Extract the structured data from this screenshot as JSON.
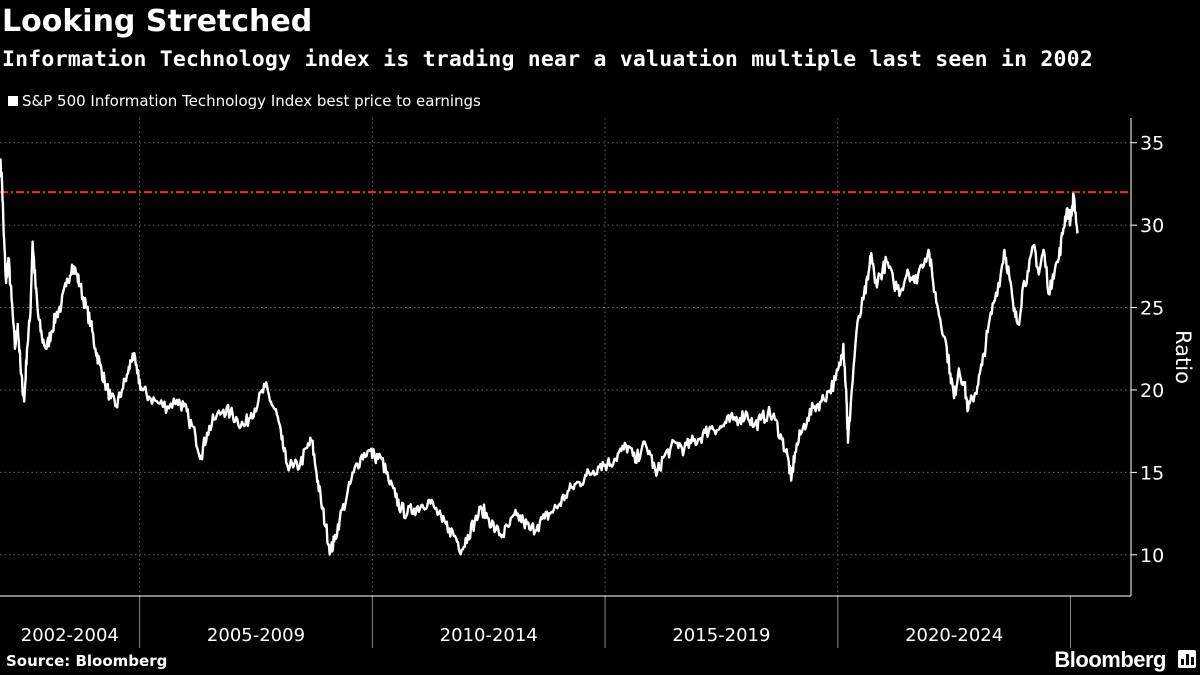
{
  "header": {
    "title": "Looking Stretched",
    "subtitle": "Information Technology index is trading near a valuation multiple last seen in 2002",
    "legend_label": "S&P 500 Information Technology Index best price to earnings"
  },
  "footer": {
    "source": "Source: Bloomberg",
    "brand": "Bloomberg"
  },
  "colors": {
    "background": "#000000",
    "line": "#ffffff",
    "reference": "#e8283c",
    "grid": "#666666"
  },
  "chart_data": {
    "type": "line",
    "title": "Looking Stretched",
    "subtitle": "Information Technology index is trading near a valuation multiple last seen in 2002",
    "ylabel": "Ratio",
    "ylim": [
      7.5,
      36.5
    ],
    "yticks": [
      10,
      15,
      20,
      25,
      30,
      35
    ],
    "xlim": [
      2002.0,
      2026.3
    ],
    "x_groups": [
      {
        "label": "2002-2004",
        "start": 2002.0,
        "end": 2005.0
      },
      {
        "label": "2005-2009",
        "start": 2005.0,
        "end": 2010.0
      },
      {
        "label": "2010-2014",
        "start": 2010.0,
        "end": 2015.0
      },
      {
        "label": "2015-2019",
        "start": 2015.0,
        "end": 2020.0
      },
      {
        "label": "2020-2024",
        "start": 2020.0,
        "end": 2025.0
      }
    ],
    "grid": true,
    "reference_line": {
      "value": 32.0,
      "style": "dash-dot"
    },
    "series": [
      {
        "name": "S&P 500 Information Technology Index best price to earnings",
        "points": [
          [
            2002.0,
            34.0
          ],
          [
            2002.04,
            32.8
          ],
          [
            2002.08,
            29.5
          ],
          [
            2002.13,
            26.5
          ],
          [
            2002.18,
            28.0
          ],
          [
            2002.25,
            25.5
          ],
          [
            2002.32,
            22.5
          ],
          [
            2002.38,
            24.0
          ],
          [
            2002.45,
            21.0
          ],
          [
            2002.52,
            19.3
          ],
          [
            2002.58,
            22.5
          ],
          [
            2002.65,
            24.5
          ],
          [
            2002.7,
            29.0
          ],
          [
            2002.76,
            26.5
          ],
          [
            2002.82,
            24.5
          ],
          [
            2002.9,
            23.2
          ],
          [
            2003.0,
            22.5
          ],
          [
            2003.1,
            23.5
          ],
          [
            2003.2,
            24.5
          ],
          [
            2003.32,
            25.2
          ],
          [
            2003.42,
            26.3
          ],
          [
            2003.55,
            27.6
          ],
          [
            2003.65,
            27.0
          ],
          [
            2003.72,
            26.3
          ],
          [
            2003.85,
            25.0
          ],
          [
            2003.95,
            24.0
          ],
          [
            2004.05,
            22.5
          ],
          [
            2004.15,
            21.5
          ],
          [
            2004.25,
            20.5
          ],
          [
            2004.38,
            19.5
          ],
          [
            2004.5,
            19.0
          ],
          [
            2004.62,
            20.0
          ],
          [
            2004.75,
            21.0
          ],
          [
            2004.85,
            22.2
          ],
          [
            2004.95,
            21.0
          ],
          [
            2005.05,
            20.0
          ],
          [
            2005.2,
            19.6
          ],
          [
            2005.4,
            19.2
          ],
          [
            2005.6,
            19.0
          ],
          [
            2005.8,
            19.4
          ],
          [
            2005.95,
            19.0
          ],
          [
            2006.05,
            18.3
          ],
          [
            2006.2,
            17.2
          ],
          [
            2006.32,
            16.0
          ],
          [
            2006.45,
            17.4
          ],
          [
            2006.6,
            18.2
          ],
          [
            2006.8,
            18.8
          ],
          [
            2006.95,
            18.6
          ],
          [
            2007.1,
            18.2
          ],
          [
            2007.25,
            17.8
          ],
          [
            2007.4,
            18.6
          ],
          [
            2007.55,
            19.3
          ],
          [
            2007.7,
            20.2
          ],
          [
            2007.82,
            19.3
          ],
          [
            2007.95,
            18.5
          ],
          [
            2008.05,
            17.0
          ],
          [
            2008.15,
            15.6
          ],
          [
            2008.3,
            15.3
          ],
          [
            2008.45,
            15.5
          ],
          [
            2008.6,
            16.5
          ],
          [
            2008.7,
            16.9
          ],
          [
            2008.8,
            15.0
          ],
          [
            2008.9,
            13.2
          ],
          [
            2009.0,
            11.7
          ],
          [
            2009.1,
            10.2
          ],
          [
            2009.18,
            10.8
          ],
          [
            2009.3,
            12.2
          ],
          [
            2009.45,
            13.5
          ],
          [
            2009.6,
            15.0
          ],
          [
            2009.75,
            15.9
          ],
          [
            2009.9,
            16.3
          ],
          [
            2010.05,
            16.0
          ],
          [
            2010.2,
            15.8
          ],
          [
            2010.35,
            14.5
          ],
          [
            2010.5,
            13.5
          ],
          [
            2010.62,
            12.8
          ],
          [
            2010.75,
            12.5
          ],
          [
            2010.9,
            12.8
          ],
          [
            2011.05,
            13.0
          ],
          [
            2011.2,
            13.3
          ],
          [
            2011.35,
            12.8
          ],
          [
            2011.5,
            12.0
          ],
          [
            2011.65,
            11.6
          ],
          [
            2011.8,
            11.0
          ],
          [
            2011.92,
            10.3
          ],
          [
            2012.05,
            11.2
          ],
          [
            2012.2,
            12.0
          ],
          [
            2012.35,
            12.8
          ],
          [
            2012.5,
            12.2
          ],
          [
            2012.65,
            11.5
          ],
          [
            2012.8,
            11.2
          ],
          [
            2012.95,
            11.8
          ],
          [
            2013.1,
            12.4
          ],
          [
            2013.25,
            12.0
          ],
          [
            2013.4,
            11.5
          ],
          [
            2013.55,
            11.8
          ],
          [
            2013.7,
            12.2
          ],
          [
            2013.85,
            12.6
          ],
          [
            2014.0,
            13.0
          ],
          [
            2014.15,
            13.6
          ],
          [
            2014.3,
            14.1
          ],
          [
            2014.45,
            14.4
          ],
          [
            2014.6,
            14.8
          ],
          [
            2014.75,
            15.1
          ],
          [
            2014.9,
            15.5
          ],
          [
            2015.05,
            15.5
          ],
          [
            2015.2,
            15.8
          ],
          [
            2015.35,
            16.3
          ],
          [
            2015.5,
            16.6
          ],
          [
            2015.65,
            15.6
          ],
          [
            2015.8,
            16.6
          ],
          [
            2015.95,
            16.3
          ],
          [
            2016.1,
            14.8
          ],
          [
            2016.25,
            15.9
          ],
          [
            2016.4,
            16.4
          ],
          [
            2016.55,
            16.8
          ],
          [
            2016.7,
            16.4
          ],
          [
            2016.85,
            16.8
          ],
          [
            2017.0,
            17.0
          ],
          [
            2017.15,
            17.4
          ],
          [
            2017.3,
            17.8
          ],
          [
            2017.45,
            17.6
          ],
          [
            2017.6,
            18.0
          ],
          [
            2017.75,
            18.2
          ],
          [
            2017.9,
            18.3
          ],
          [
            2018.05,
            18.6
          ],
          [
            2018.2,
            17.8
          ],
          [
            2018.35,
            18.2
          ],
          [
            2018.5,
            18.6
          ],
          [
            2018.65,
            18.2
          ],
          [
            2018.8,
            17.0
          ],
          [
            2018.92,
            16.0
          ],
          [
            2019.0,
            14.5
          ],
          [
            2019.08,
            16.2
          ],
          [
            2019.2,
            17.3
          ],
          [
            2019.35,
            18.3
          ],
          [
            2019.5,
            19.0
          ],
          [
            2019.65,
            19.3
          ],
          [
            2019.8,
            19.9
          ],
          [
            2019.95,
            20.6
          ],
          [
            2020.05,
            21.5
          ],
          [
            2020.12,
            22.8
          ],
          [
            2020.18,
            20.0
          ],
          [
            2020.22,
            16.8
          ],
          [
            2020.28,
            19.2
          ],
          [
            2020.4,
            23.5
          ],
          [
            2020.55,
            25.5
          ],
          [
            2020.65,
            26.7
          ],
          [
            2020.72,
            28.3
          ],
          [
            2020.8,
            26.5
          ],
          [
            2020.92,
            27.0
          ],
          [
            2021.05,
            27.8
          ],
          [
            2021.2,
            26.5
          ],
          [
            2021.35,
            26.0
          ],
          [
            2021.5,
            27.3
          ],
          [
            2021.65,
            26.5
          ],
          [
            2021.8,
            27.6
          ],
          [
            2021.95,
            28.5
          ],
          [
            2022.05,
            26.5
          ],
          [
            2022.15,
            25.0
          ],
          [
            2022.3,
            23.2
          ],
          [
            2022.42,
            21.0
          ],
          [
            2022.5,
            19.5
          ],
          [
            2022.6,
            21.3
          ],
          [
            2022.72,
            20.3
          ],
          [
            2022.8,
            18.8
          ],
          [
            2022.9,
            19.5
          ],
          [
            2023.0,
            20.2
          ],
          [
            2023.1,
            21.5
          ],
          [
            2023.22,
            23.5
          ],
          [
            2023.35,
            25.3
          ],
          [
            2023.5,
            27.0
          ],
          [
            2023.58,
            28.5
          ],
          [
            2023.68,
            27.0
          ],
          [
            2023.78,
            24.8
          ],
          [
            2023.88,
            24.0
          ],
          [
            2023.98,
            26.3
          ],
          [
            2024.1,
            27.2
          ],
          [
            2024.22,
            28.8
          ],
          [
            2024.32,
            27.0
          ],
          [
            2024.42,
            28.5
          ],
          [
            2024.55,
            25.8
          ],
          [
            2024.62,
            27.0
          ],
          [
            2024.75,
            28.0
          ],
          [
            2024.85,
            29.8
          ],
          [
            2024.92,
            31.0
          ],
          [
            2025.0,
            30.3
          ],
          [
            2025.07,
            31.8
          ],
          [
            2025.15,
            29.5
          ]
        ]
      }
    ]
  }
}
